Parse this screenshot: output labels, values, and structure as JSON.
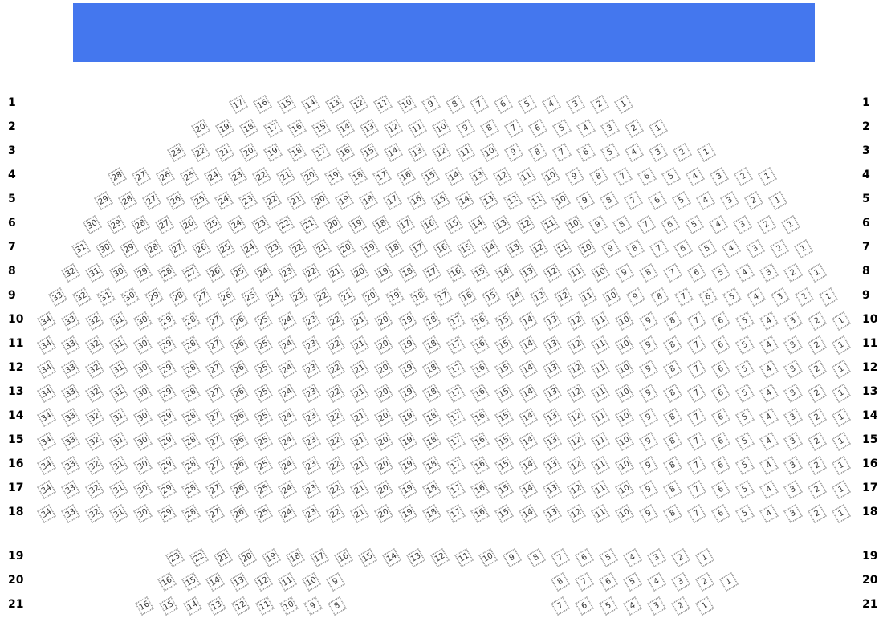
{
  "stage": {
    "color": "#4477ee"
  },
  "rows": [
    {
      "label": "1",
      "seats": [
        17,
        16,
        15,
        14,
        13,
        12,
        11,
        10,
        9,
        8,
        7,
        6,
        5,
        4,
        3,
        2,
        1
      ]
    },
    {
      "label": "2",
      "seats": [
        20,
        19,
        18,
        17,
        16,
        15,
        14,
        13,
        12,
        11,
        10,
        9,
        8,
        7,
        6,
        5,
        4,
        3,
        2,
        1
      ]
    },
    {
      "label": "3",
      "seats": [
        23,
        22,
        21,
        20,
        19,
        18,
        17,
        16,
        15,
        14,
        13,
        12,
        11,
        10,
        9,
        8,
        7,
        6,
        5,
        4,
        3,
        2,
        1
      ]
    },
    {
      "label": "4",
      "seats": [
        28,
        27,
        26,
        25,
        24,
        23,
        22,
        21,
        20,
        19,
        18,
        17,
        16,
        15,
        14,
        13,
        12,
        11,
        10,
        9,
        8,
        7,
        6,
        5,
        4,
        3,
        2,
        1
      ]
    },
    {
      "label": "5",
      "seats": [
        29,
        28,
        27,
        26,
        25,
        24,
        23,
        22,
        21,
        20,
        19,
        18,
        17,
        16,
        15,
        14,
        13,
        12,
        11,
        10,
        9,
        8,
        7,
        6,
        5,
        4,
        3,
        2,
        1
      ]
    },
    {
      "label": "6",
      "seats": [
        30,
        29,
        28,
        27,
        26,
        25,
        24,
        23,
        22,
        21,
        20,
        19,
        18,
        17,
        16,
        15,
        14,
        13,
        12,
        11,
        10,
        9,
        8,
        7,
        6,
        5,
        4,
        3,
        2,
        1
      ]
    },
    {
      "label": "7",
      "seats": [
        31,
        30,
        29,
        28,
        27,
        26,
        25,
        24,
        23,
        22,
        21,
        20,
        19,
        18,
        17,
        16,
        15,
        14,
        13,
        12,
        11,
        10,
        9,
        8,
        7,
        6,
        5,
        4,
        3,
        2,
        1
      ]
    },
    {
      "label": "8",
      "seats": [
        32,
        31,
        30,
        29,
        28,
        27,
        26,
        25,
        24,
        23,
        22,
        21,
        20,
        19,
        18,
        17,
        16,
        15,
        14,
        13,
        12,
        11,
        10,
        9,
        8,
        7,
        6,
        5,
        4,
        3,
        2,
        1
      ]
    },
    {
      "label": "9",
      "seats": [
        33,
        32,
        31,
        30,
        29,
        28,
        27,
        26,
        25,
        24,
        23,
        22,
        21,
        20,
        19,
        18,
        17,
        16,
        15,
        14,
        13,
        12,
        11,
        10,
        9,
        8,
        7,
        6,
        5,
        4,
        3,
        2,
        1
      ]
    },
    {
      "label": "10",
      "seats": [
        34,
        33,
        32,
        31,
        30,
        29,
        28,
        27,
        26,
        25,
        24,
        23,
        22,
        21,
        20,
        19,
        18,
        17,
        16,
        15,
        14,
        13,
        12,
        11,
        10,
        9,
        8,
        7,
        6,
        5,
        4,
        3,
        2,
        1
      ]
    },
    {
      "label": "11",
      "seats": [
        34,
        33,
        32,
        31,
        30,
        29,
        28,
        27,
        26,
        25,
        24,
        23,
        22,
        21,
        20,
        19,
        18,
        17,
        16,
        15,
        14,
        13,
        12,
        11,
        10,
        9,
        8,
        7,
        6,
        5,
        4,
        3,
        2,
        1
      ]
    },
    {
      "label": "12",
      "seats": [
        34,
        33,
        32,
        31,
        30,
        29,
        28,
        27,
        26,
        25,
        24,
        23,
        22,
        21,
        20,
        19,
        18,
        17,
        16,
        15,
        14,
        13,
        12,
        11,
        10,
        9,
        8,
        7,
        6,
        5,
        4,
        3,
        2,
        1
      ]
    },
    {
      "label": "13",
      "seats": [
        34,
        33,
        32,
        31,
        30,
        29,
        28,
        27,
        26,
        25,
        24,
        23,
        22,
        21,
        20,
        19,
        18,
        17,
        16,
        15,
        14,
        13,
        12,
        11,
        10,
        9,
        8,
        7,
        6,
        5,
        4,
        3,
        2,
        1
      ]
    },
    {
      "label": "14",
      "seats": [
        34,
        33,
        32,
        31,
        30,
        29,
        28,
        27,
        26,
        25,
        24,
        23,
        22,
        21,
        20,
        19,
        18,
        17,
        16,
        15,
        14,
        13,
        12,
        11,
        10,
        9,
        8,
        7,
        6,
        5,
        4,
        3,
        2,
        1
      ]
    },
    {
      "label": "15",
      "seats": [
        34,
        33,
        32,
        31,
        30,
        29,
        28,
        27,
        26,
        25,
        24,
        23,
        22,
        21,
        20,
        19,
        18,
        17,
        16,
        15,
        14,
        13,
        12,
        11,
        10,
        9,
        8,
        7,
        6,
        5,
        4,
        3,
        2,
        1
      ]
    },
    {
      "label": "16",
      "seats": [
        34,
        33,
        32,
        31,
        30,
        29,
        28,
        27,
        26,
        25,
        24,
        23,
        22,
        21,
        20,
        19,
        18,
        17,
        16,
        15,
        14,
        13,
        12,
        11,
        10,
        9,
        8,
        7,
        6,
        5,
        4,
        3,
        2,
        1
      ]
    },
    {
      "label": "17",
      "seats": [
        34,
        33,
        32,
        31,
        30,
        29,
        28,
        27,
        26,
        25,
        24,
        23,
        22,
        21,
        20,
        19,
        18,
        17,
        16,
        15,
        14,
        13,
        12,
        11,
        10,
        9,
        8,
        7,
        6,
        5,
        4,
        3,
        2,
        1
      ]
    },
    {
      "label": "18",
      "seats": [
        34,
        33,
        32,
        31,
        30,
        29,
        28,
        27,
        26,
        25,
        24,
        23,
        22,
        21,
        20,
        19,
        18,
        17,
        16,
        15,
        14,
        13,
        12,
        11,
        10,
        9,
        8,
        7,
        6,
        5,
        4,
        3,
        2,
        1
      ]
    },
    {
      "label": "19",
      "seats": [
        23,
        22,
        21,
        20,
        19,
        18,
        17,
        16,
        15,
        14,
        13,
        12,
        11,
        10,
        9,
        8,
        7,
        6,
        5,
        4,
        3,
        2,
        1
      ]
    },
    {
      "label": "20",
      "seats": [
        16,
        15,
        14,
        13,
        12,
        11,
        10,
        9,
        8,
        7,
        6,
        5,
        4,
        3,
        2,
        1
      ]
    },
    {
      "label": "21",
      "seats": [
        16,
        15,
        14,
        13,
        12,
        11,
        10,
        9,
        8,
        7,
        6,
        5,
        4,
        3,
        2,
        1
      ]
    }
  ]
}
